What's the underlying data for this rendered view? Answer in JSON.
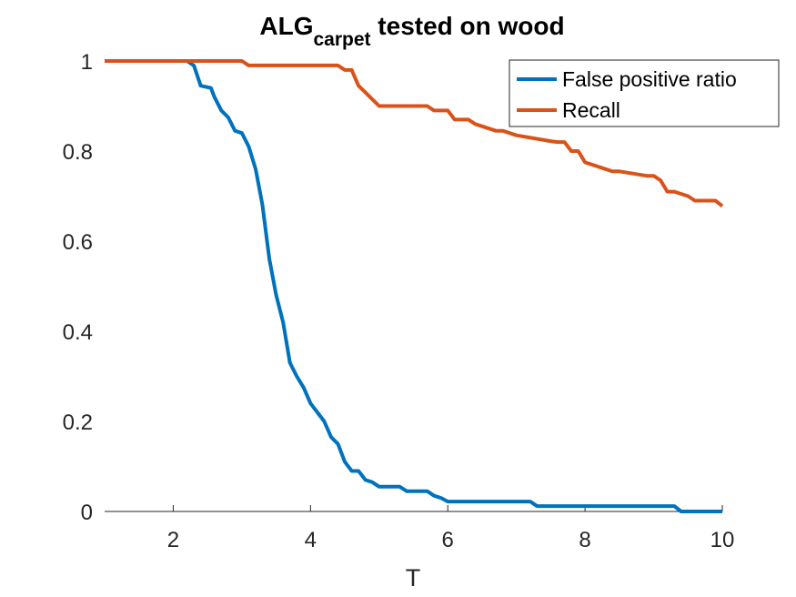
{
  "chart_data": {
    "type": "line",
    "title": "ALG",
    "title_subscript": "carpet",
    "title_suffix": " tested on wood",
    "xlabel": "T",
    "ylabel": "",
    "xlim": [
      1,
      10
    ],
    "ylim": [
      0,
      1
    ],
    "xticks": [
      2,
      4,
      6,
      8,
      10
    ],
    "xtick_labels": [
      "2",
      "4",
      "6",
      "8",
      "10"
    ],
    "yticks": [
      0,
      0.2,
      0.4,
      0.6,
      0.8,
      1
    ],
    "ytick_labels": [
      "0",
      "0.2",
      "0.4",
      "0.6",
      "0.8",
      "1"
    ],
    "grid": false,
    "legend_position": "top-right",
    "series": [
      {
        "name": "False positive ratio",
        "color": "#0072BD",
        "x": [
          1.0,
          2.2,
          2.3,
          2.4,
          2.55,
          2.6,
          2.7,
          2.8,
          2.9,
          3.0,
          3.1,
          3.2,
          3.25,
          3.3,
          3.35,
          3.4,
          3.5,
          3.6,
          3.7,
          3.8,
          3.9,
          4.0,
          4.1,
          4.2,
          4.3,
          4.4,
          4.5,
          4.6,
          4.7,
          4.8,
          4.9,
          5.0,
          5.1,
          5.3,
          5.4,
          5.5,
          5.7,
          5.8,
          5.9,
          6.0,
          7.2,
          7.3,
          9.3,
          9.4,
          10.0
        ],
        "y": [
          1.0,
          1.0,
          0.99,
          0.945,
          0.94,
          0.92,
          0.89,
          0.875,
          0.845,
          0.84,
          0.81,
          0.76,
          0.72,
          0.68,
          0.62,
          0.56,
          0.48,
          0.42,
          0.33,
          0.3,
          0.275,
          0.24,
          0.22,
          0.2,
          0.165,
          0.15,
          0.11,
          0.09,
          0.09,
          0.07,
          0.065,
          0.055,
          0.055,
          0.055,
          0.045,
          0.045,
          0.045,
          0.035,
          0.03,
          0.022,
          0.022,
          0.012,
          0.012,
          0.0,
          0.0
        ]
      },
      {
        "name": "Recall",
        "color": "#D95319",
        "x": [
          1.0,
          3.0,
          3.1,
          3.3,
          4.4,
          4.5,
          4.6,
          4.7,
          4.8,
          4.9,
          5.0,
          5.7,
          5.8,
          6.0,
          6.1,
          6.3,
          6.4,
          6.7,
          6.8,
          7.0,
          7.5,
          7.6,
          7.7,
          7.8,
          7.9,
          8.0,
          8.4,
          8.5,
          8.9,
          9.0,
          9.1,
          9.2,
          9.3,
          9.5,
          9.6,
          9.9,
          10.0
        ],
        "y": [
          1.0,
          1.0,
          0.99,
          0.99,
          0.99,
          0.98,
          0.98,
          0.945,
          0.93,
          0.915,
          0.9,
          0.9,
          0.89,
          0.89,
          0.87,
          0.87,
          0.86,
          0.845,
          0.845,
          0.835,
          0.822,
          0.82,
          0.82,
          0.8,
          0.8,
          0.775,
          0.755,
          0.755,
          0.745,
          0.745,
          0.735,
          0.71,
          0.71,
          0.7,
          0.69,
          0.69,
          0.678
        ]
      }
    ]
  }
}
